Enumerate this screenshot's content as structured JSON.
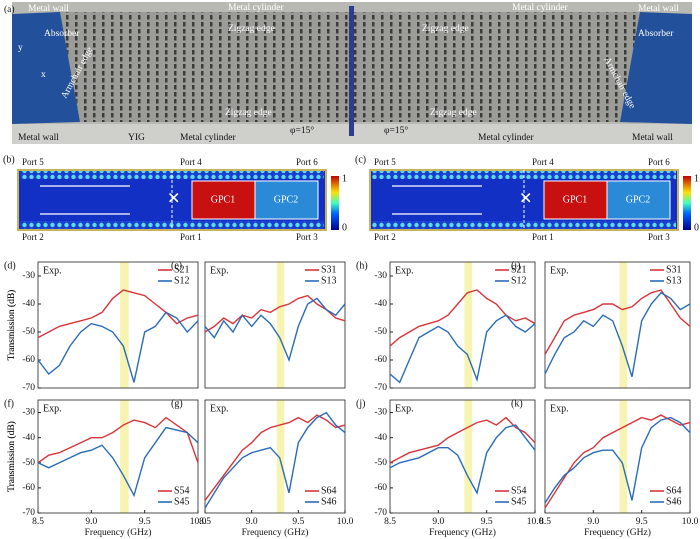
{
  "photo": {
    "label": "(a)",
    "labels": [
      "Metal wall",
      "Metal cylinder",
      "Zigzag edge",
      "Zigzag edge",
      "Metal cylinder",
      "Metal wall",
      "Absorber",
      "Absorber",
      "Armchair edge",
      "Armchair edge",
      "Zigzag edge",
      "Zigzag edge",
      "Metal wall",
      "YIG",
      "Metal cylinder",
      "φ=15°",
      "φ=15°",
      "Metal cylinder",
      "Metal wall",
      "y",
      "x"
    ]
  },
  "field_maps": [
    {
      "label": "(b)",
      "ports": [
        "Port 5",
        "Port 4",
        "Port 6",
        "Port 2",
        "Port 1",
        "Port 3"
      ],
      "blocks": [
        "GPC1",
        "GPC2"
      ],
      "colorbar": [
        1,
        0
      ]
    },
    {
      "label": "(c)",
      "ports": [
        "Port 5",
        "Port 4",
        "Port 6",
        "Port 2",
        "Port 1",
        "Port 3"
      ],
      "blocks": [
        "GPC1",
        "GPC2"
      ],
      "colorbar": [
        1,
        0
      ]
    }
  ],
  "chart_data": [
    {
      "type": "line",
      "label": "(d)",
      "annotation": "Exp.",
      "ylabel": "Transmission (dB)",
      "legend": "upper right",
      "band": [
        9.27,
        9.35
      ],
      "xlim": [
        8.5,
        10
      ],
      "ylim": [
        -70,
        -25
      ],
      "yticks": [
        -30,
        -40,
        -50,
        -60,
        -70
      ],
      "x": [
        8.5,
        8.6,
        8.7,
        8.8,
        8.9,
        9.0,
        9.1,
        9.2,
        9.3,
        9.4,
        9.5,
        9.6,
        9.7,
        9.8,
        9.9,
        10.0
      ],
      "series": [
        {
          "name": "S21",
          "color": "#d9343a",
          "values": [
            -52,
            -50,
            -48,
            -47,
            -46,
            -45,
            -43,
            -38,
            -35,
            -36,
            -37,
            -40,
            -43,
            -47,
            -45,
            -44
          ]
        },
        {
          "name": "S12",
          "color": "#2a6cb8",
          "values": [
            -60,
            -65,
            -62,
            -55,
            -50,
            -47,
            -48,
            -50,
            -55,
            -68,
            -50,
            -48,
            -43,
            -45,
            -50,
            -46
          ]
        }
      ]
    },
    {
      "type": "line",
      "label": "(e)",
      "annotation": "Exp.",
      "legend": "upper right",
      "band": [
        9.27,
        9.35
      ],
      "xlim": [
        8.5,
        10
      ],
      "ylim": [
        -70,
        -25
      ],
      "x": [
        8.5,
        8.6,
        8.7,
        8.8,
        8.9,
        9.0,
        9.1,
        9.2,
        9.3,
        9.4,
        9.5,
        9.6,
        9.7,
        9.8,
        9.9,
        10.0
      ],
      "series": [
        {
          "name": "S31",
          "color": "#d9343a",
          "values": [
            -50,
            -48,
            -45,
            -47,
            -44,
            -45,
            -42,
            -43,
            -41,
            -40,
            -38,
            -37,
            -40,
            -42,
            -45,
            -46
          ]
        },
        {
          "name": "S13",
          "color": "#2a6cb8",
          "values": [
            -48,
            -52,
            -46,
            -50,
            -44,
            -48,
            -44,
            -47,
            -52,
            -60,
            -48,
            -40,
            -38,
            -42,
            -44,
            -40
          ]
        }
      ]
    },
    {
      "type": "line",
      "label": "(f)",
      "annotation": "Exp.",
      "ylabel": "Transmission (dB)",
      "xlabel": "Frequency (GHz)",
      "legend": "lower right",
      "band": [
        9.27,
        9.35
      ],
      "xlim": [
        8.5,
        10
      ],
      "ylim": [
        -70,
        -25
      ],
      "yticks": [
        -30,
        -40,
        -50,
        -60,
        -70
      ],
      "xticks": [
        8.5,
        {
          "value": 9,
          "label": "9.0"
        },
        9.5,
        {
          "value": 10,
          "label": "10.0"
        }
      ],
      "x": [
        8.5,
        8.6,
        8.7,
        8.8,
        8.9,
        9.0,
        9.1,
        9.2,
        9.3,
        9.4,
        9.5,
        9.6,
        9.7,
        9.8,
        9.9,
        10.0
      ],
      "series": [
        {
          "name": "S54",
          "color": "#d9343a",
          "values": [
            -50,
            -47,
            -46,
            -44,
            -42,
            -40,
            -40,
            -38,
            -35,
            -33,
            -34,
            -36,
            -32,
            -35,
            -38,
            -50
          ]
        },
        {
          "name": "S45",
          "color": "#2a6cb8",
          "values": [
            -50,
            -52,
            -50,
            -48,
            -46,
            -45,
            -43,
            -48,
            -55,
            -63,
            -48,
            -42,
            -36,
            -37,
            -38,
            -42
          ]
        }
      ]
    },
    {
      "type": "line",
      "label": "(g)",
      "annotation": "Exp.",
      "xlabel": "Frequency (GHz)",
      "legend": "lower right",
      "band": [
        9.27,
        9.35
      ],
      "xlim": [
        8.5,
        10
      ],
      "ylim": [
        -70,
        -25
      ],
      "xticks": [
        8.5,
        {
          "value": 9,
          "label": "9.0"
        },
        9.5,
        {
          "value": 10,
          "label": "10.0"
        }
      ],
      "x": [
        8.5,
        8.6,
        8.7,
        8.8,
        8.9,
        9.0,
        9.1,
        9.2,
        9.3,
        9.4,
        9.5,
        9.6,
        9.7,
        9.8,
        9.9,
        10.0
      ],
      "series": [
        {
          "name": "S64",
          "color": "#d9343a",
          "values": [
            -65,
            -60,
            -55,
            -50,
            -45,
            -42,
            -38,
            -36,
            -35,
            -34,
            -32,
            -34,
            -31,
            -33,
            -36,
            -35
          ]
        },
        {
          "name": "S46",
          "color": "#2a6cb8",
          "values": [
            -68,
            -62,
            -56,
            -52,
            -48,
            -46,
            -45,
            -44,
            -48,
            -62,
            -42,
            -36,
            -32,
            -30,
            -35,
            -38
          ]
        }
      ]
    },
    {
      "type": "line",
      "label": "(h)",
      "annotation": "Exp.",
      "ylabel": "Transmission (dB)",
      "legend": "upper right",
      "band": [
        9.27,
        9.35
      ],
      "xlim": [
        8.5,
        10
      ],
      "ylim": [
        -70,
        -25
      ],
      "yticks": [
        -30,
        -40,
        -50,
        -60,
        -70
      ],
      "x": [
        8.5,
        8.6,
        8.7,
        8.8,
        8.9,
        9.0,
        9.1,
        9.2,
        9.3,
        9.4,
        9.5,
        9.6,
        9.7,
        9.8,
        9.9,
        10.0
      ],
      "series": [
        {
          "name": "S21",
          "color": "#d9343a",
          "values": [
            -55,
            -52,
            -50,
            -48,
            -47,
            -46,
            -44,
            -40,
            -36,
            -35,
            -38,
            -40,
            -44,
            -46,
            -45,
            -47
          ]
        },
        {
          "name": "S12",
          "color": "#2a6cb8",
          "values": [
            -65,
            -68,
            -60,
            -52,
            -50,
            -48,
            -50,
            -55,
            -58,
            -67,
            -50,
            -46,
            -44,
            -48,
            -50,
            -47
          ]
        }
      ]
    },
    {
      "type": "line",
      "label": "(i)",
      "annotation": "Exp.",
      "legend": "upper right",
      "band": [
        9.27,
        9.35
      ],
      "xlim": [
        8.5,
        10
      ],
      "ylim": [
        -70,
        -25
      ],
      "x": [
        8.5,
        8.6,
        8.7,
        8.8,
        8.9,
        9.0,
        9.1,
        9.2,
        9.3,
        9.4,
        9.5,
        9.6,
        9.7,
        9.8,
        9.9,
        10.0
      ],
      "series": [
        {
          "name": "S31",
          "color": "#d9343a",
          "values": [
            -58,
            -52,
            -46,
            -44,
            -43,
            -42,
            -40,
            -40,
            -42,
            -41,
            -38,
            -36,
            -35,
            -40,
            -45,
            -48
          ]
        },
        {
          "name": "S13",
          "color": "#2a6cb8",
          "values": [
            -65,
            -58,
            -52,
            -50,
            -46,
            -48,
            -44,
            -46,
            -55,
            -66,
            -46,
            -40,
            -36,
            -38,
            -42,
            -40
          ]
        }
      ]
    },
    {
      "type": "line",
      "label": "(j)",
      "annotation": "Exp.",
      "ylabel": "Transmission (dB)",
      "xlabel": "Frequency (GHz)",
      "legend": "lower right",
      "band": [
        9.27,
        9.35
      ],
      "xlim": [
        8.5,
        10
      ],
      "ylim": [
        -70,
        -25
      ],
      "yticks": [
        -30,
        -40,
        -50,
        -60,
        -70
      ],
      "xticks": [
        8.5,
        {
          "value": 9,
          "label": "9.0"
        },
        9.5,
        {
          "value": 10,
          "label": "10.0"
        }
      ],
      "x": [
        8.5,
        8.6,
        8.7,
        8.8,
        8.9,
        9.0,
        9.1,
        9.2,
        9.3,
        9.4,
        9.5,
        9.6,
        9.7,
        9.8,
        9.9,
        10.0
      ],
      "series": [
        {
          "name": "S54",
          "color": "#d9343a",
          "values": [
            -50,
            -48,
            -46,
            -45,
            -44,
            -43,
            -40,
            -38,
            -36,
            -34,
            -33,
            -35,
            -32,
            -36,
            -38,
            -42
          ]
        },
        {
          "name": "S45",
          "color": "#2a6cb8",
          "values": [
            -52,
            -50,
            -49,
            -48,
            -46,
            -44,
            -44,
            -47,
            -55,
            -62,
            -46,
            -40,
            -36,
            -35,
            -40,
            -45
          ]
        }
      ]
    },
    {
      "type": "line",
      "label": "(k)",
      "annotation": "Exp.",
      "xlabel": "Frequency (GHz)",
      "legend": "lower right",
      "band": [
        9.27,
        9.35
      ],
      "xlim": [
        8.5,
        10
      ],
      "ylim": [
        -70,
        -25
      ],
      "xticks": [
        8.5,
        {
          "value": 9,
          "label": "9.0"
        },
        9.5,
        {
          "value": 10,
          "label": "10.0"
        }
      ],
      "x": [
        8.5,
        8.6,
        8.7,
        8.8,
        8.9,
        9.0,
        9.1,
        9.2,
        9.3,
        9.4,
        9.5,
        9.6,
        9.7,
        9.8,
        9.9,
        10.0
      ],
      "series": [
        {
          "name": "S64",
          "color": "#d9343a",
          "values": [
            -68,
            -62,
            -56,
            -50,
            -46,
            -44,
            -40,
            -38,
            -36,
            -34,
            -32,
            -33,
            -31,
            -33,
            -35,
            -34
          ]
        },
        {
          "name": "S46",
          "color": "#2a6cb8",
          "values": [
            -66,
            -60,
            -55,
            -52,
            -48,
            -46,
            -45,
            -45,
            -50,
            -65,
            -44,
            -36,
            -33,
            -32,
            -34,
            -38
          ]
        }
      ]
    }
  ]
}
